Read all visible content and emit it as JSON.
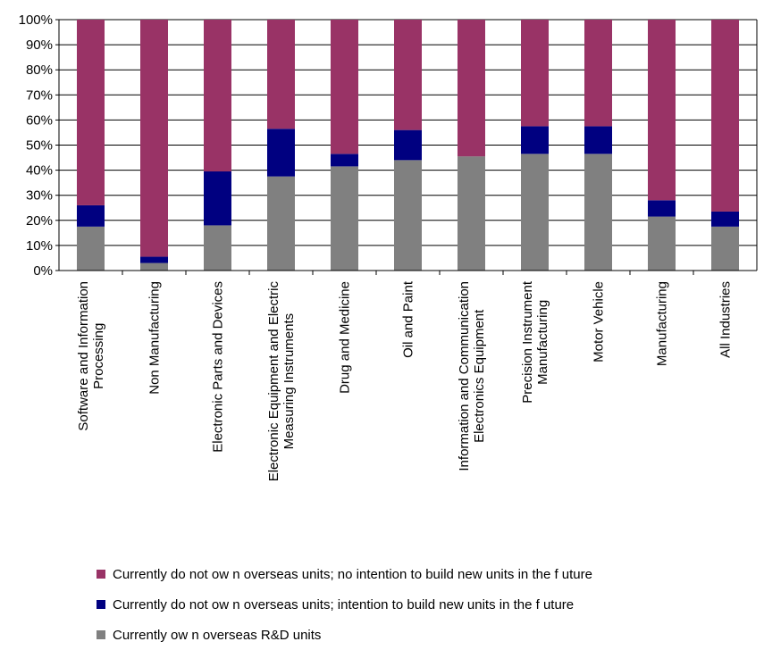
{
  "chart_data": {
    "type": "bar",
    "stacked": true,
    "percent_stacked": true,
    "title": "",
    "xlabel": "",
    "ylabel": "",
    "ylim": [
      0,
      100
    ],
    "yticks": [
      "0%",
      "10%",
      "20%",
      "30%",
      "40%",
      "50%",
      "60%",
      "70%",
      "80%",
      "90%",
      "100%"
    ],
    "grid": true,
    "legend_position": "bottom",
    "categories": [
      [
        "Software and Information",
        "Processing"
      ],
      [
        "Non Manufacturing"
      ],
      [
        "Electronic Parts and Devices"
      ],
      [
        "Electronic Equipment and Electric",
        "Measuring Instruments"
      ],
      [
        "Drug and Medicine"
      ],
      [
        "Oil and Paint"
      ],
      [
        "Information and Communication",
        "Electronics Equipment"
      ],
      [
        "Precision Instrument",
        "Manufacturing"
      ],
      [
        "Motor Vehicle"
      ],
      [
        "Manufacturing"
      ],
      [
        "All Industries"
      ]
    ],
    "series": [
      {
        "name": "Currently ow n overseas R&D units",
        "color": "#808080",
        "values": [
          17.5,
          3,
          18,
          37.5,
          41.5,
          44,
          45.5,
          46.5,
          46.5,
          21.5,
          17.5
        ]
      },
      {
        "name": "Currently do not ow n overseas units; intention to build new  units in the f uture",
        "color": "#000080",
        "values": [
          8.5,
          2.5,
          21.5,
          19,
          5,
          12,
          0,
          11,
          11,
          6.5,
          6
        ]
      },
      {
        "name": "Currently do not ow n overseas units; no intention to build new  units in the f uture",
        "color": "#993366",
        "values": [
          74,
          94.5,
          60.5,
          43.5,
          53.5,
          44,
          54.5,
          42.5,
          42.5,
          72,
          76.5
        ]
      }
    ],
    "legend_order": [
      2,
      1,
      0
    ]
  }
}
